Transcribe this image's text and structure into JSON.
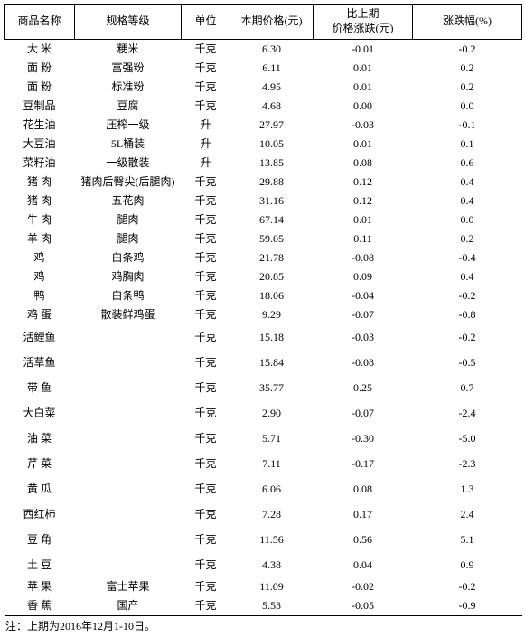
{
  "columns": [
    "商品名称",
    "规格等级",
    "单位",
    "本期价格(元)",
    "比上期\n价格涨跌(元)",
    "涨跌幅(%)"
  ],
  "rows": [
    {
      "n": "大 米",
      "s": "粳米",
      "u": "千克",
      "p": "6.30",
      "d": "-0.01",
      "r": "-0.2",
      "tall": false
    },
    {
      "n": "面 粉",
      "s": "富强粉",
      "u": "千克",
      "p": "6.11",
      "d": "0.01",
      "r": "0.2",
      "tall": false
    },
    {
      "n": "面 粉",
      "s": "标准粉",
      "u": "千克",
      "p": "4.95",
      "d": "0.01",
      "r": "0.2",
      "tall": false
    },
    {
      "n": "豆制品",
      "s": "豆腐",
      "u": "千克",
      "p": "4.68",
      "d": "0.00",
      "r": "0.0",
      "tall": false
    },
    {
      "n": "花生油",
      "s": "压榨一级",
      "u": "升",
      "p": "27.97",
      "d": "-0.03",
      "r": "-0.1",
      "tall": false
    },
    {
      "n": "大豆油",
      "s": "5L桶装",
      "u": "升",
      "p": "10.05",
      "d": "0.01",
      "r": "0.1",
      "tall": false
    },
    {
      "n": "菜籽油",
      "s": "一级散装",
      "u": "升",
      "p": "13.85",
      "d": "0.08",
      "r": "0.6",
      "tall": false
    },
    {
      "n": "猪 肉",
      "s": "猪肉后臀尖(后腿肉)",
      "u": "千克",
      "p": "29.88",
      "d": "0.12",
      "r": "0.4",
      "tall": false
    },
    {
      "n": "猪 肉",
      "s": "五花肉",
      "u": "千克",
      "p": "31.16",
      "d": "0.12",
      "r": "0.4",
      "tall": false
    },
    {
      "n": "牛 肉",
      "s": "腿肉",
      "u": "千克",
      "p": "67.14",
      "d": "0.01",
      "r": "0.0",
      "tall": false
    },
    {
      "n": "羊 肉",
      "s": "腿肉",
      "u": "千克",
      "p": "59.05",
      "d": "0.11",
      "r": "0.2",
      "tall": false
    },
    {
      "n": "鸡",
      "s": "白条鸡",
      "u": "千克",
      "p": "21.78",
      "d": "-0.08",
      "r": "-0.4",
      "tall": false
    },
    {
      "n": "鸡",
      "s": "鸡胸肉",
      "u": "千克",
      "p": "20.85",
      "d": "0.09",
      "r": "0.4",
      "tall": false
    },
    {
      "n": "鸭",
      "s": "白条鸭",
      "u": "千克",
      "p": "18.06",
      "d": "-0.04",
      "r": "-0.2",
      "tall": false
    },
    {
      "n": "鸡 蛋",
      "s": "散装鲜鸡蛋",
      "u": "千克",
      "p": "9.29",
      "d": "-0.07",
      "r": "-0.8",
      "tall": false
    },
    {
      "n": "活鲤鱼",
      "s": "",
      "u": "千克",
      "p": "15.18",
      "d": "-0.03",
      "r": "-0.2",
      "tall": true
    },
    {
      "n": "活草鱼",
      "s": "",
      "u": "千克",
      "p": "15.84",
      "d": "-0.08",
      "r": "-0.5",
      "tall": true
    },
    {
      "n": "带 鱼",
      "s": "",
      "u": "千克",
      "p": "35.77",
      "d": "0.25",
      "r": "0.7",
      "tall": true
    },
    {
      "n": "大白菜",
      "s": "",
      "u": "千克",
      "p": "2.90",
      "d": "-0.07",
      "r": "-2.4",
      "tall": true
    },
    {
      "n": "油 菜",
      "s": "",
      "u": "千克",
      "p": "5.71",
      "d": "-0.30",
      "r": "-5.0",
      "tall": true
    },
    {
      "n": "芹 菜",
      "s": "",
      "u": "千克",
      "p": "7.11",
      "d": "-0.17",
      "r": "-2.3",
      "tall": true
    },
    {
      "n": "黄 瓜",
      "s": "",
      "u": "千克",
      "p": "6.06",
      "d": "0.08",
      "r": "1.3",
      "tall": true
    },
    {
      "n": "西红柿",
      "s": "",
      "u": "千克",
      "p": "7.28",
      "d": "0.17",
      "r": "2.4",
      "tall": true
    },
    {
      "n": "豆 角",
      "s": "",
      "u": "千克",
      "p": "11.56",
      "d": "0.56",
      "r": "5.1",
      "tall": true
    },
    {
      "n": "土 豆",
      "s": "",
      "u": "千克",
      "p": "4.38",
      "d": "0.04",
      "r": "0.9",
      "tall": true
    },
    {
      "n": "苹 果",
      "s": "富士苹果",
      "u": "千克",
      "p": "11.09",
      "d": "-0.02",
      "r": "-0.2",
      "tall": false
    },
    {
      "n": "香 蕉",
      "s": "国产",
      "u": "千克",
      "p": "5.53",
      "d": "-0.05",
      "r": "-0.9",
      "tall": false
    }
  ],
  "note": "注：上期为2016年12月1-10日。"
}
